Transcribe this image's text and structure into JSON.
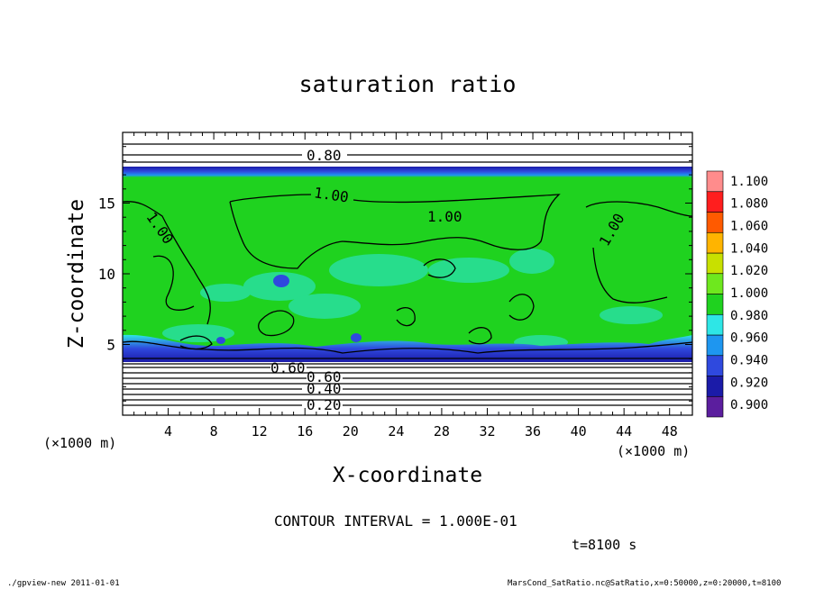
{
  "chart_data": {
    "type": "heatmap",
    "title": "saturation ratio",
    "xlabel": "X-coordinate",
    "ylabel": "Z-coordinate",
    "x_unit": "(×1000 m)",
    "y_unit": "(×1000 m)",
    "xlim": [
      0,
      50
    ],
    "ylim": [
      0,
      20
    ],
    "x_ticks": [
      "4",
      "8",
      "12",
      "16",
      "20",
      "24",
      "28",
      "32",
      "36",
      "40",
      "44",
      "48"
    ],
    "y_ticks": [
      "5",
      "10",
      "15"
    ],
    "contour_labels": [
      "0.80",
      "1.00",
      "1.00",
      "1.00",
      "0.60",
      "0.60",
      "0.40",
      "0.20"
    ],
    "colorbar": {
      "levels": [
        "0.900",
        "0.920",
        "0.940",
        "0.960",
        "0.980",
        "1.000",
        "1.020",
        "1.040",
        "1.060",
        "1.080",
        "1.100"
      ],
      "colors": [
        "#5b1e9e",
        "#1b1ba8",
        "#2f49de",
        "#1e96f0",
        "#2ee6e6",
        "#1fd21f",
        "#6ee81e",
        "#c8e000",
        "#ffb400",
        "#ff5a00",
        "#ff1e1e",
        "#ff8c8c"
      ]
    },
    "contour_interval_text": "CONTOUR INTERVAL = 1.000E-01",
    "time_text": "t=8100 s"
  },
  "footer": {
    "left": "./gpview-new  2011-01-01",
    "right": "MarsCond_SatRatio.nc@SatRatio,x=0:50000,z=0:20000,t=8100"
  }
}
